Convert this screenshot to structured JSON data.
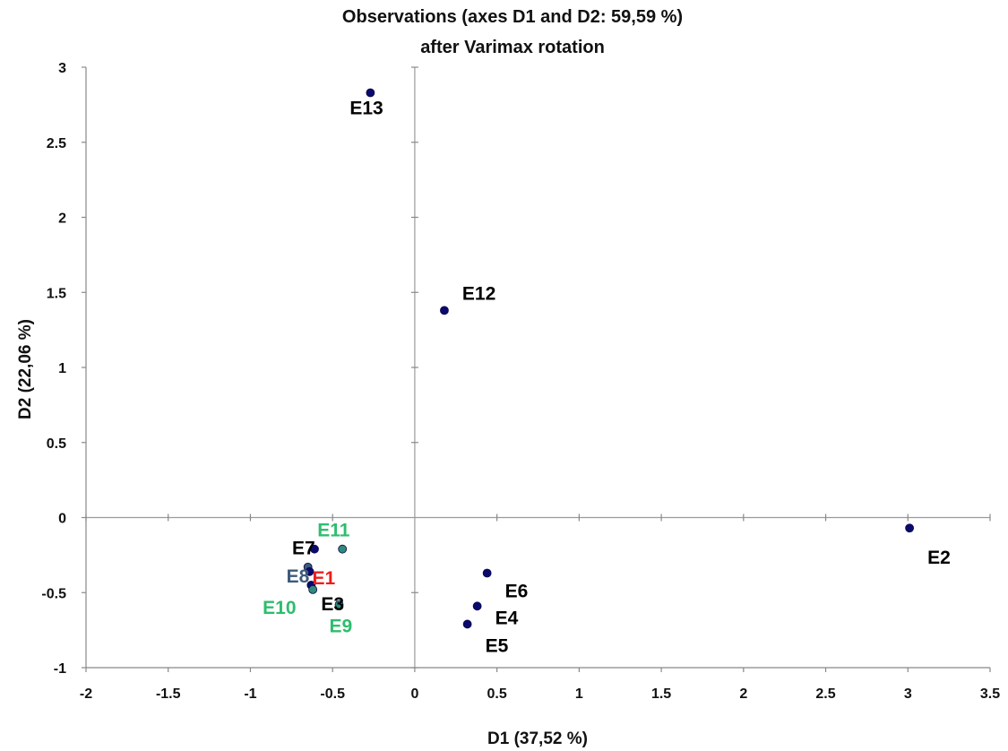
{
  "chart_data": {
    "type": "scatter",
    "title": "Observations (axes D1 and D2: 59,59 %)",
    "subtitle": "after Varimax rotation",
    "xlabel": "D1 (37,52 %)",
    "ylabel": "D2 (22,06 %)",
    "xlim": [
      -2,
      3.5
    ],
    "ylim": [
      -1,
      3
    ],
    "x_ticks": [
      "-2",
      "-1.5",
      "-1",
      "-0.5",
      "0",
      "0.5",
      "1",
      "1.5",
      "2",
      "2.5",
      "3",
      "3.5"
    ],
    "y_ticks": [
      "-1",
      "-0.5",
      "0",
      "0.5",
      "1",
      "1.5",
      "2",
      "2.5",
      "3"
    ],
    "grid": false,
    "legend": "none",
    "points": [
      {
        "label": "E13",
        "x": -0.27,
        "y": 2.83,
        "color": "#000000",
        "dot": "#0a0a6e"
      },
      {
        "label": "E12",
        "x": 0.18,
        "y": 1.38,
        "color": "#000000",
        "dot": "#0a0a6e"
      },
      {
        "label": "E2",
        "x": 3.01,
        "y": -0.07,
        "color": "#000000",
        "dot": "#0a0a6e"
      },
      {
        "label": "E6",
        "x": 0.44,
        "y": -0.37,
        "color": "#000000",
        "dot": "#0a0a6e"
      },
      {
        "label": "E4",
        "x": 0.38,
        "y": -0.59,
        "color": "#000000",
        "dot": "#0a0a6e"
      },
      {
        "label": "E5",
        "x": 0.32,
        "y": -0.71,
        "color": "#000000",
        "dot": "#0a0a6e"
      },
      {
        "label": "E11",
        "x": -0.44,
        "y": -0.21,
        "color": "#2ebd6e",
        "dot": "#2f8a7a"
      },
      {
        "label": "E7",
        "x": -0.61,
        "y": -0.21,
        "color": "#000000",
        "dot": "#0a0a6e"
      },
      {
        "label": "E8",
        "x": -0.65,
        "y": -0.33,
        "color": "#3d5a7a",
        "dot": "#3d5a7a"
      },
      {
        "label": "E1",
        "x": -0.64,
        "y": -0.36,
        "color": "#ee1c1c",
        "dot": "#0a0a6e"
      },
      {
        "label": "E3",
        "x": -0.63,
        "y": -0.45,
        "color": "#000000",
        "dot": "#0a0a6e"
      },
      {
        "label": "E10",
        "x": -0.62,
        "y": -0.48,
        "color": "#2ebd6e",
        "dot": "#2f8a7a"
      },
      {
        "label": "E9",
        "x": -0.46,
        "y": -0.58,
        "color": "#2ebd6e",
        "dot": "#2f8a7a"
      }
    ]
  }
}
